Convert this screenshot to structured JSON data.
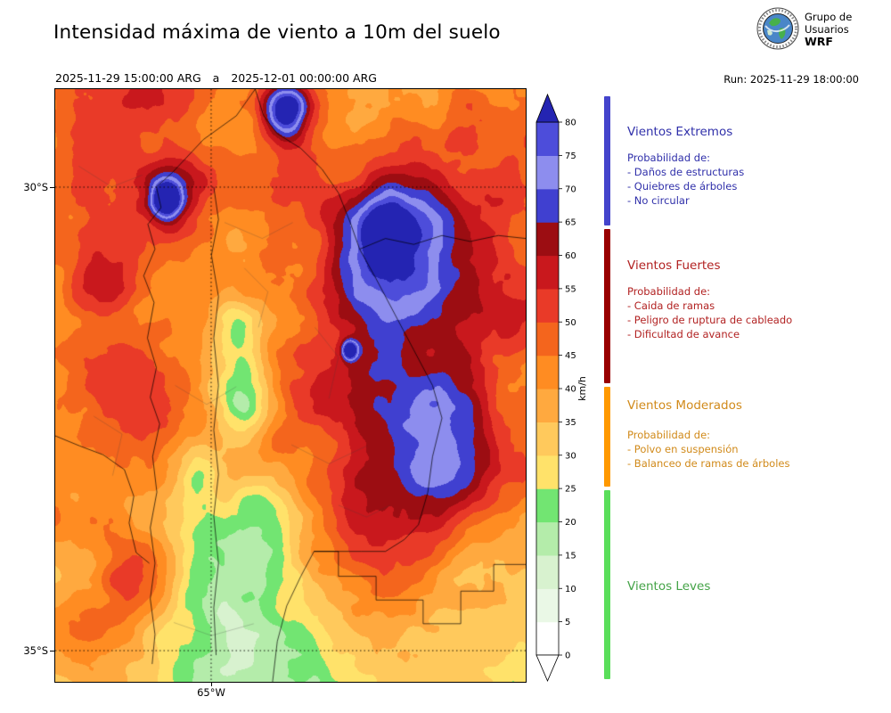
{
  "header": {
    "title": "Intensidad máxima de viento a 10m del suelo",
    "valid_from": "2025-11-29 15:00:00 ARG",
    "valid_separator": "a",
    "valid_to": "2025-12-01 00:00:00 ARG",
    "run": "Run: 2025-11-29 18:00:00",
    "logo_lines": {
      "l1": "Grupo de",
      "l2": "Usuarios",
      "l3": "WRF"
    }
  },
  "map_axes": {
    "lat_ticks": {
      "t30": "30°S",
      "t35": "35°S"
    },
    "lon_ticks": {
      "t65": "65°W"
    }
  },
  "colorbar": {
    "unit": "km/h",
    "vmin": 0,
    "vmax": 80,
    "tick_values": [
      0,
      5,
      10,
      15,
      20,
      25,
      30,
      35,
      40,
      45,
      50,
      55,
      60,
      65,
      70,
      75,
      80
    ],
    "segment_colors": [
      "#ffffff",
      "#eaf8e6",
      "#d8f2cf",
      "#b4ecaa",
      "#72e572",
      "#ffe26a",
      "#ffc95c",
      "#ffa93f",
      "#ff8c22",
      "#f4651d",
      "#e93a28",
      "#c9181d",
      "#9c0d12",
      "#4040d0",
      "#8d8dee",
      "#4d4dda"
    ],
    "over_color": "#2424b2",
    "under_color": "#ffffff"
  },
  "legend": {
    "sections": [
      {
        "name": "Vientos Extremos",
        "color": "#3030aa",
        "bar_color": "#4444cc",
        "prob": "Probabilidad de:",
        "items": [
          "- Daños de estructuras",
          "- Quiebres de árboles",
          "- No circular"
        ]
      },
      {
        "name": "Vientos Fuertes",
        "color": "#b22222",
        "bar_color": "#990000",
        "prob": "Probabilidad de:",
        "items": [
          "- Caida de ramas",
          "- Peligro de ruptura de cableado",
          "- Dificultad de avance"
        ]
      },
      {
        "name": "Vientos Moderados",
        "color": "#d18a1a",
        "bar_color": "#ff9900",
        "prob": "Probabilidad de:",
        "items": [
          "- Polvo en suspensión",
          "- Balanceo de ramas de árboles"
        ]
      },
      {
        "name": "Vientos Leves",
        "color": "#44a347",
        "bar_color": "#5ade5a",
        "prob": "",
        "items": []
      }
    ]
  }
}
